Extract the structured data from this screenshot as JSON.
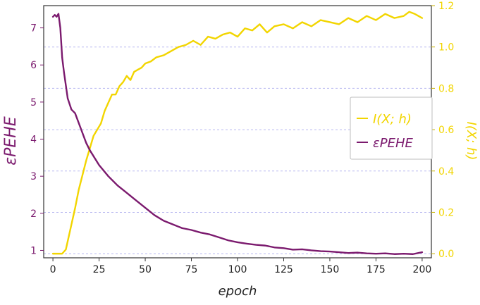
{
  "chart_data": {
    "type": "line",
    "title": "",
    "xlabel": "epoch",
    "ylabel_left": "εPEHE",
    "ylabel_right": "I(X; h)",
    "xlim": [
      -5,
      205
    ],
    "ylim_left": [
      0.8,
      7.6
    ],
    "ylim_right": [
      -0.02,
      1.2
    ],
    "x_ticks": [
      0,
      25,
      50,
      75,
      100,
      125,
      150,
      175,
      200
    ],
    "x_tick_labels": [
      "0",
      "25",
      "50",
      "75",
      "100",
      "125",
      "150",
      "175",
      "200"
    ],
    "y_left_ticks": [
      1,
      2,
      3,
      4,
      5,
      6,
      7
    ],
    "y_left_tick_labels": [
      "1",
      "2",
      "3",
      "4",
      "5",
      "6",
      "7"
    ],
    "y_right_ticks": [
      0.0,
      0.2,
      0.4,
      0.6,
      0.8,
      1.0,
      1.2
    ],
    "y_right_tick_labels": [
      "0.0",
      "0.2",
      "0.4",
      "0.6",
      "0.8",
      "1.0",
      "1.2"
    ],
    "grid": "horizontal dashed",
    "legend_position": "right",
    "series": [
      {
        "name": "I(X; h)",
        "axis": "right",
        "color": "#f2d500",
        "x": [
          0,
          5,
          7,
          8,
          10,
          12,
          14,
          16,
          18,
          20,
          22,
          24,
          26,
          28,
          30,
          32,
          34,
          36,
          38,
          40,
          42,
          44,
          46,
          48,
          50,
          53,
          56,
          60,
          64,
          68,
          72,
          76,
          80,
          84,
          88,
          92,
          96,
          100,
          104,
          108,
          112,
          116,
          120,
          125,
          130,
          135,
          140,
          145,
          150,
          155,
          160,
          165,
          170,
          175,
          180,
          185,
          190,
          193,
          196,
          198,
          200
        ],
        "y": [
          0.0,
          0.0,
          0.02,
          0.06,
          0.14,
          0.22,
          0.31,
          0.38,
          0.45,
          0.51,
          0.57,
          0.6,
          0.63,
          0.69,
          0.73,
          0.77,
          0.77,
          0.81,
          0.83,
          0.86,
          0.84,
          0.88,
          0.89,
          0.9,
          0.92,
          0.93,
          0.95,
          0.96,
          0.98,
          1.0,
          1.01,
          1.03,
          1.01,
          1.05,
          1.04,
          1.06,
          1.07,
          1.05,
          1.09,
          1.08,
          1.11,
          1.07,
          1.1,
          1.11,
          1.09,
          1.12,
          1.1,
          1.13,
          1.12,
          1.11,
          1.14,
          1.12,
          1.15,
          1.13,
          1.16,
          1.14,
          1.15,
          1.17,
          1.16,
          1.15,
          1.14
        ]
      },
      {
        "name": "εPEHE",
        "axis": "left",
        "color": "#7b1a6e",
        "x": [
          0,
          1,
          2,
          3,
          4,
          5,
          6,
          8,
          10,
          12,
          15,
          18,
          20,
          25,
          30,
          35,
          40,
          45,
          50,
          55,
          60,
          65,
          70,
          75,
          80,
          85,
          90,
          95,
          100,
          105,
          110,
          115,
          120,
          125,
          130,
          135,
          140,
          145,
          150,
          155,
          160,
          165,
          170,
          175,
          180,
          185,
          190,
          195,
          200
        ],
        "y": [
          7.3,
          7.35,
          7.3,
          7.38,
          7.0,
          6.2,
          5.8,
          5.1,
          4.8,
          4.7,
          4.3,
          3.9,
          3.7,
          3.3,
          3.0,
          2.75,
          2.55,
          2.35,
          2.15,
          1.95,
          1.8,
          1.7,
          1.6,
          1.55,
          1.48,
          1.43,
          1.35,
          1.27,
          1.22,
          1.18,
          1.15,
          1.13,
          1.08,
          1.06,
          1.02,
          1.03,
          1.0,
          0.98,
          0.97,
          0.95,
          0.93,
          0.94,
          0.92,
          0.91,
          0.92,
          0.9,
          0.91,
          0.9,
          0.95
        ]
      }
    ]
  }
}
